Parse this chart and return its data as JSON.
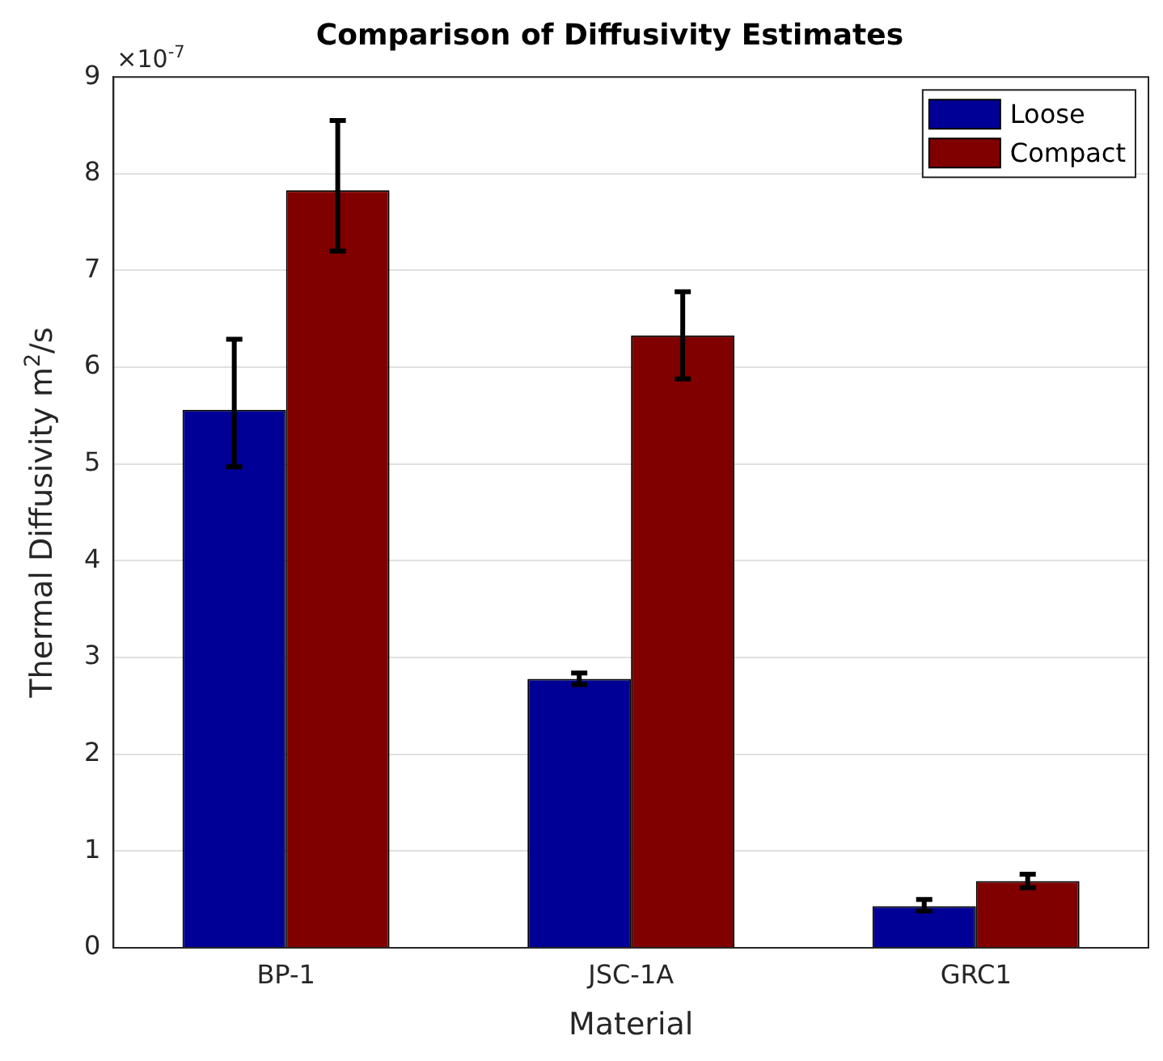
{
  "chart_data": {
    "type": "bar",
    "title": "Comparison of Diffusivity Estimates",
    "xlabel": "Material",
    "ylabel": "Thermal Diffusivity m$^{2}$/s",
    "annotations": [
      "×10$^{-7}$"
    ],
    "categories": [
      "BP-1",
      "JSC-1A",
      "GRC1"
    ],
    "series": [
      {
        "name": "Loose",
        "color": "#000096",
        "values": [
          5.56,
          2.78,
          0.43
        ],
        "errors": [
          [
            4.97,
            6.29
          ],
          [
            2.72,
            2.84
          ],
          [
            0.38,
            0.5
          ]
        ]
      },
      {
        "name": "Compact",
        "color": "#800000",
        "values": [
          7.83,
          6.33,
          0.69
        ],
        "errors": [
          [
            7.2,
            8.55
          ],
          [
            5.88,
            6.78
          ],
          [
            0.62,
            0.76
          ]
        ]
      }
    ],
    "ylim": [
      0,
      9
    ],
    "yticks": [
      0,
      1,
      2,
      3,
      4,
      5,
      6,
      7,
      8,
      9
    ],
    "grid": "y",
    "legend": "top right"
  }
}
